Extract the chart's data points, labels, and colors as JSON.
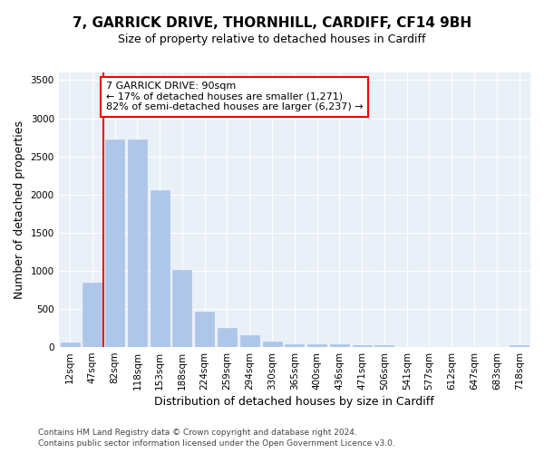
{
  "title1": "7, GARRICK DRIVE, THORNHILL, CARDIFF, CF14 9BH",
  "title2": "Size of property relative to detached houses in Cardiff",
  "xlabel": "Distribution of detached houses by size in Cardiff",
  "ylabel": "Number of detached properties",
  "categories": [
    "12sqm",
    "47sqm",
    "82sqm",
    "118sqm",
    "153sqm",
    "188sqm",
    "224sqm",
    "259sqm",
    "294sqm",
    "330sqm",
    "365sqm",
    "400sqm",
    "436sqm",
    "471sqm",
    "506sqm",
    "541sqm",
    "577sqm",
    "612sqm",
    "647sqm",
    "683sqm",
    "718sqm"
  ],
  "values": [
    60,
    850,
    2720,
    2720,
    2060,
    1010,
    460,
    250,
    160,
    70,
    40,
    40,
    40,
    25,
    20,
    0,
    0,
    0,
    0,
    0,
    20
  ],
  "bar_color": "#aec6e8",
  "bar_edgecolor": "#aec6e8",
  "vline_color": "red",
  "annotation_text": "7 GARRICK DRIVE: 90sqm\n← 17% of detached houses are smaller (1,271)\n82% of semi-detached houses are larger (6,237) →",
  "annotation_box_color": "white",
  "annotation_box_edgecolor": "red",
  "ylim": [
    0,
    3600
  ],
  "yticks": [
    0,
    500,
    1000,
    1500,
    2000,
    2500,
    3000,
    3500
  ],
  "background_color": "#eaf0f8",
  "footer1": "Contains HM Land Registry data © Crown copyright and database right 2024.",
  "footer2": "Contains public sector information licensed under the Open Government Licence v3.0.",
  "title1_fontsize": 11,
  "title2_fontsize": 9,
  "axis_label_fontsize": 9,
  "tick_fontsize": 7.5,
  "annotation_fontsize": 8,
  "footer_fontsize": 6.5
}
